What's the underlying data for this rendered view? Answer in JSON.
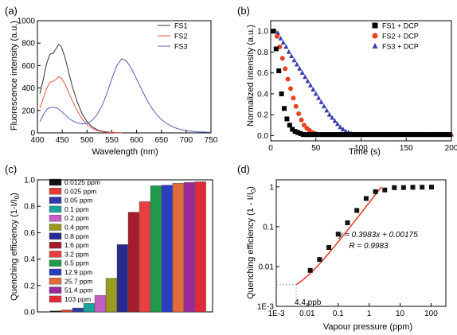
{
  "chart_data": [
    {
      "panel": "(a)",
      "type": "line",
      "xlabel": "Wavelength (nm)",
      "ylabel": "Fluorescence intensity (a.u.)",
      "xlim": [
        400,
        750
      ],
      "ylim": [
        0,
        1000
      ],
      "xticks": [
        400,
        450,
        500,
        550,
        600,
        650,
        700,
        750
      ],
      "yticks": [
        0,
        200,
        400,
        600,
        800,
        1000
      ],
      "legend_position": "top-right",
      "series": [
        {
          "name": "FS1",
          "color": "#333333",
          "x": [
            405,
            412,
            418,
            425,
            432,
            438,
            443,
            448,
            455,
            462,
            470,
            480,
            490,
            500,
            510,
            520,
            530,
            540,
            550,
            560,
            570
          ],
          "y": [
            350,
            480,
            610,
            700,
            710,
            755,
            790,
            770,
            680,
            560,
            420,
            280,
            170,
            100,
            55,
            30,
            15,
            8,
            4,
            2,
            1
          ]
        },
        {
          "name": "FS2",
          "color": "#e8534a",
          "x": [
            405,
            412,
            418,
            425,
            432,
            438,
            443,
            448,
            455,
            462,
            470,
            480,
            490,
            500,
            510,
            520,
            530,
            540,
            550,
            560,
            570
          ],
          "y": [
            220,
            310,
            390,
            450,
            460,
            480,
            500,
            490,
            440,
            370,
            290,
            200,
            125,
            75,
            42,
            22,
            11,
            6,
            3,
            2,
            1
          ]
        },
        {
          "name": "FS3",
          "color": "#5560b8",
          "x": [
            405,
            412,
            420,
            430,
            440,
            448,
            455,
            462,
            470,
            480,
            490,
            500,
            510,
            520,
            530,
            540,
            550,
            560,
            570,
            580,
            590,
            600,
            610,
            620,
            630,
            640,
            650,
            660,
            670,
            680,
            690,
            700,
            720,
            750
          ],
          "y": [
            100,
            160,
            215,
            230,
            220,
            195,
            165,
            135,
            110,
            90,
            80,
            85,
            110,
            160,
            240,
            350,
            480,
            600,
            660,
            640,
            570,
            480,
            390,
            300,
            225,
            165,
            120,
            85,
            60,
            42,
            30,
            20,
            10,
            4
          ]
        }
      ]
    },
    {
      "panel": "(b)",
      "type": "scatter",
      "xlabel": "Time (s)",
      "ylabel": "Normalized intensity (a.u.)",
      "xlim": [
        0,
        200
      ],
      "ylim": [
        -0.05,
        1.1
      ],
      "xticks": [
        0,
        50,
        100,
        150,
        200
      ],
      "yticks": [
        0.0,
        0.2,
        0.4,
        0.6,
        0.8,
        1.0
      ],
      "legend_position": "top-right",
      "series": [
        {
          "name": "FS1 + DCP",
          "marker": "square",
          "color": "#000000",
          "x": [
            3,
            6,
            9,
            12,
            15,
            18,
            21,
            24,
            27,
            30,
            33,
            36,
            39,
            42,
            45,
            48,
            51,
            54,
            57,
            60,
            63,
            66,
            69,
            72,
            75,
            78,
            81,
            84,
            87,
            90,
            93,
            96,
            99,
            102,
            105,
            108,
            111,
            114,
            117,
            120,
            123,
            126,
            129,
            132,
            135,
            138,
            141,
            144,
            147,
            150,
            153,
            156,
            159,
            162,
            165,
            168,
            171,
            174,
            177,
            180,
            183,
            186,
            189,
            192,
            195,
            198
          ],
          "y": [
            1.0,
            0.83,
            0.62,
            0.4,
            0.26,
            0.16,
            0.1,
            0.06,
            0.04,
            0.03,
            0.02,
            0.01,
            0.01,
            0.01,
            0.01,
            0.01,
            0.01,
            0.01,
            0.01,
            0.01,
            0.01,
            0.01,
            0.01,
            0.01,
            0.01,
            0.01,
            0.01,
            0.01,
            0.01,
            0.01,
            0.01,
            0.01,
            0.01,
            0.01,
            0.01,
            0.01,
            0.01,
            0.01,
            0.01,
            0.01,
            0.01,
            0.01,
            0.01,
            0.01,
            0.01,
            0.01,
            0.01,
            0.01,
            0.01,
            0.01,
            0.01,
            0.01,
            0.01,
            0.01,
            0.01,
            0.01,
            0.01,
            0.01,
            0.01,
            0.01,
            0.01,
            0.01,
            0.01,
            0.01,
            0.01,
            0.01
          ]
        },
        {
          "name": "FS2 + DCP",
          "marker": "circle",
          "color": "#e8411e",
          "x": [
            4,
            7,
            10,
            13,
            16,
            19,
            22,
            25,
            28,
            31,
            34,
            37,
            40,
            43,
            46,
            49,
            52,
            55,
            58,
            61,
            64,
            67,
            70,
            73,
            76,
            79,
            82,
            85,
            88,
            91,
            94,
            97,
            100,
            103,
            106,
            109,
            112,
            115,
            118,
            121,
            124,
            127,
            130,
            133,
            136,
            139,
            142,
            145,
            148,
            151,
            154,
            157,
            160,
            163,
            166,
            169,
            172,
            175,
            178,
            181,
            184,
            187,
            190,
            193,
            196,
            199
          ],
          "y": [
            1.0,
            0.95,
            0.85,
            0.74,
            0.64,
            0.54,
            0.45,
            0.36,
            0.28,
            0.21,
            0.15,
            0.1,
            0.07,
            0.05,
            0.03,
            0.02,
            0.01,
            0.01,
            0.01,
            0.01,
            0.01,
            0.01,
            0.01,
            0.01,
            0.01,
            0.01,
            0.01,
            0.01,
            0.01,
            0.01,
            0.01,
            0.01,
            0.01,
            0.01,
            0.01,
            0.01,
            0.01,
            0.01,
            0.01,
            0.01,
            0.01,
            0.01,
            0.01,
            0.01,
            0.01,
            0.01,
            0.01,
            0.01,
            0.01,
            0.01,
            0.01,
            0.01,
            0.01,
            0.01,
            0.01,
            0.01,
            0.01,
            0.01,
            0.01,
            0.01,
            0.01,
            0.01,
            0.01,
            0.01,
            0.01,
            0.01
          ]
        },
        {
          "name": "FS3 + DCP",
          "marker": "triangle",
          "color": "#3a3fb0",
          "x": [
            5,
            8,
            11,
            14,
            17,
            20,
            23,
            26,
            29,
            32,
            35,
            38,
            41,
            44,
            47,
            50,
            53,
            56,
            59,
            62,
            65,
            68,
            71,
            74,
            77,
            80,
            83,
            86,
            89,
            92,
            95,
            98,
            101,
            104,
            107,
            110,
            113,
            116,
            119,
            122,
            125,
            128,
            131,
            134,
            137,
            140,
            143,
            146,
            149,
            152,
            155,
            158,
            161,
            164,
            167,
            170,
            173,
            176,
            179,
            182,
            185,
            188,
            191,
            194,
            197,
            200
          ],
          "y": [
            1.0,
            0.98,
            0.93,
            0.89,
            0.85,
            0.8,
            0.76,
            0.72,
            0.68,
            0.64,
            0.6,
            0.56,
            0.52,
            0.48,
            0.44,
            0.4,
            0.36,
            0.32,
            0.28,
            0.24,
            0.2,
            0.17,
            0.14,
            0.11,
            0.08,
            0.06,
            0.04,
            0.03,
            0.02,
            0.01,
            0.01,
            0.01,
            0.01,
            0.01,
            0.01,
            0.01,
            0.01,
            0.01,
            0.01,
            0.01,
            0.01,
            0.01,
            0.01,
            0.01,
            0.01,
            0.01,
            0.01,
            0.01,
            0.01,
            0.01,
            0.01,
            0.01,
            0.01,
            0.01,
            0.01,
            0.01,
            0.01,
            0.01,
            0.01,
            0.01,
            0.01,
            0.01,
            0.01,
            0.01,
            0.01,
            0.01
          ]
        }
      ]
    },
    {
      "panel": "(c)",
      "type": "bar",
      "ylabel_main": "Quenching efficiency (1-I/I",
      "ylabel_sub": "0",
      "ylabel_close": ")",
      "ylim": [
        0,
        1.0
      ],
      "yticks": [
        0.0,
        0.2,
        0.4,
        0.6,
        0.8,
        1.0
      ],
      "legend_position": "top-left",
      "categories": [
        "0.0125 ppm",
        "0.025 ppm",
        "0.05 ppm",
        "0.1 ppm",
        "0.2 ppm",
        "0.4 ppm",
        "0.8 ppm",
        "1.6 ppm",
        "3.2 ppm",
        "6.5 ppm",
        "12.9 ppm",
        "25.7 ppm",
        "51.4 ppm",
        "103 ppm"
      ],
      "values": [
        0.008,
        0.015,
        0.03,
        0.065,
        0.125,
        0.255,
        0.51,
        0.755,
        0.835,
        0.955,
        0.96,
        0.975,
        0.98,
        0.985
      ],
      "colors": [
        "#111111",
        "#e83a30",
        "#2f3aa8",
        "#19a39a",
        "#c45ec0",
        "#9a9a1f",
        "#2a2a8e",
        "#a51c2a",
        "#e84040",
        "#1f9a4a",
        "#2a3fc0",
        "#e36b3a",
        "#9a2a9a",
        "#e02a3a"
      ]
    },
    {
      "panel": "(d)",
      "type": "scatter",
      "xlabel": "Vapour pressure (ppm)",
      "ylabel": "Quenching efficiency (1 - I/I",
      "ylabel_sub": "0",
      "ylabel_close": ")",
      "xscale": "log",
      "yscale": "log",
      "xlim": [
        0.001,
        300
      ],
      "ylim": [
        0.001,
        1.5
      ],
      "xticks": [
        "1E-3",
        "0.01",
        "0.1",
        "1",
        "10",
        "100"
      ],
      "yticks": [
        "1E-3",
        "0.01",
        "0.1",
        "1"
      ],
      "x": [
        0.0125,
        0.025,
        0.05,
        0.1,
        0.2,
        0.4,
        0.8,
        1.6,
        3.2,
        6.5,
        12.9,
        25.7,
        51.4,
        103
      ],
      "y": [
        0.008,
        0.015,
        0.03,
        0.065,
        0.125,
        0.255,
        0.51,
        0.755,
        0.835,
        0.955,
        0.96,
        0.975,
        0.98,
        0.985
      ],
      "fit_line": {
        "slope": 0.3983,
        "intercept": 0.00175,
        "x_range": [
          0.0044,
          2.5
        ],
        "color": "#e84030"
      },
      "equation": "y = 0.3983x + 0.00175",
      "r_text": "R = 0.9983",
      "detection_limit": {
        "x": 0.0044,
        "y": 0.0035,
        "label": "4.4 ppb"
      }
    }
  ]
}
